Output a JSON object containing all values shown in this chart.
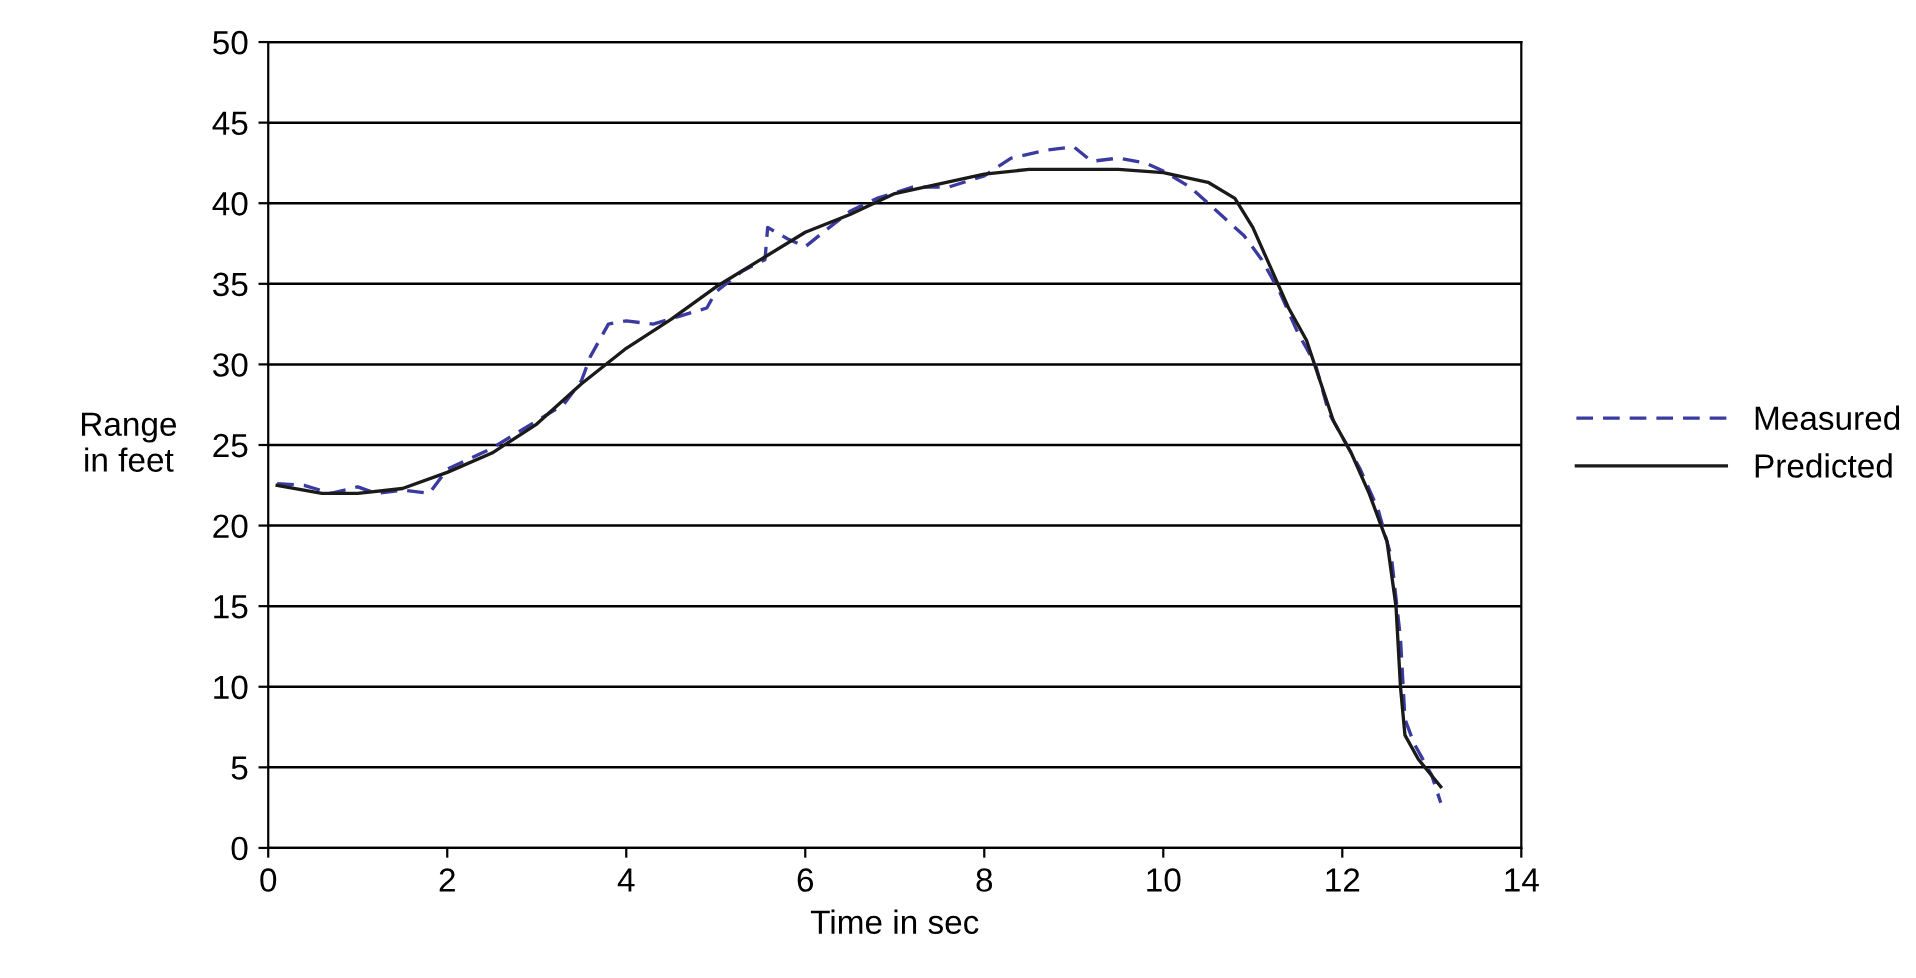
{
  "chart_data": {
    "type": "line",
    "xlabel": "Time in sec",
    "ylabel": "Range\nin feet",
    "xlim": [
      0,
      14
    ],
    "xticks": [
      0,
      2,
      4,
      6,
      8,
      10,
      12,
      14
    ],
    "ylim": [
      0,
      50
    ],
    "yticks": [
      0,
      5,
      10,
      15,
      20,
      25,
      30,
      35,
      40,
      45,
      50
    ],
    "grid": "y",
    "legend": "right",
    "marker": "none",
    "series": [
      {
        "name": "Measured",
        "color": "#3a3aa0",
        "line_style": "dashed",
        "x": [
          0.1,
          0.4,
          0.7,
          1.0,
          1.2,
          1.5,
          1.8,
          2.0,
          2.5,
          3.0,
          3.3,
          3.5,
          3.6,
          3.8,
          4.0,
          4.3,
          4.6,
          4.9,
          5.0,
          5.3,
          5.55,
          5.58,
          5.8,
          6.0,
          6.2,
          6.5,
          6.8,
          7.2,
          7.6,
          8.0,
          8.3,
          8.7,
          9.0,
          9.2,
          9.5,
          9.8,
          10.0,
          10.3,
          10.6,
          10.9,
          11.1,
          11.3,
          11.5,
          11.7,
          11.85,
          12.0,
          12.2,
          12.4,
          12.55,
          12.65,
          12.7,
          12.8,
          13.0,
          13.1
        ],
        "values": [
          22.6,
          22.5,
          22.0,
          22.4,
          22.0,
          22.2,
          22.0,
          23.5,
          24.8,
          26.5,
          27.5,
          29.0,
          30.5,
          32.5,
          32.7,
          32.5,
          33.0,
          33.5,
          34.5,
          35.8,
          36.5,
          38.5,
          37.8,
          37.3,
          38.2,
          39.5,
          40.3,
          41.0,
          41.0,
          41.7,
          42.8,
          43.3,
          43.5,
          42.6,
          42.8,
          42.5,
          42.0,
          41.0,
          39.5,
          38.0,
          36.5,
          34.5,
          32.0,
          30.0,
          27.0,
          25.5,
          23.5,
          21.0,
          18.0,
          13.0,
          8.0,
          6.5,
          4.5,
          2.8
        ]
      },
      {
        "name": "Predicted",
        "color": "#1a1a1a",
        "line_style": "solid",
        "x": [
          0.1,
          0.6,
          1.0,
          1.5,
          2.0,
          2.5,
          3.0,
          3.5,
          4.0,
          4.5,
          5.0,
          5.5,
          6.0,
          6.5,
          7.0,
          7.5,
          8.0,
          8.5,
          9.0,
          9.5,
          10.0,
          10.5,
          10.8,
          11.0,
          11.2,
          11.4,
          11.6,
          11.75,
          11.9,
          12.1,
          12.3,
          12.5,
          12.6,
          12.65,
          12.7,
          12.85,
          13.1
        ],
        "values": [
          22.5,
          22.0,
          22.0,
          22.3,
          23.3,
          24.5,
          26.3,
          28.8,
          31.0,
          32.8,
          34.8,
          36.5,
          38.2,
          39.3,
          40.6,
          41.2,
          41.8,
          42.1,
          42.1,
          42.1,
          41.9,
          41.3,
          40.3,
          38.5,
          36.0,
          33.5,
          31.5,
          29.0,
          26.5,
          24.5,
          22.0,
          19.0,
          15.0,
          10.0,
          7.0,
          5.5,
          3.8
        ]
      }
    ]
  }
}
